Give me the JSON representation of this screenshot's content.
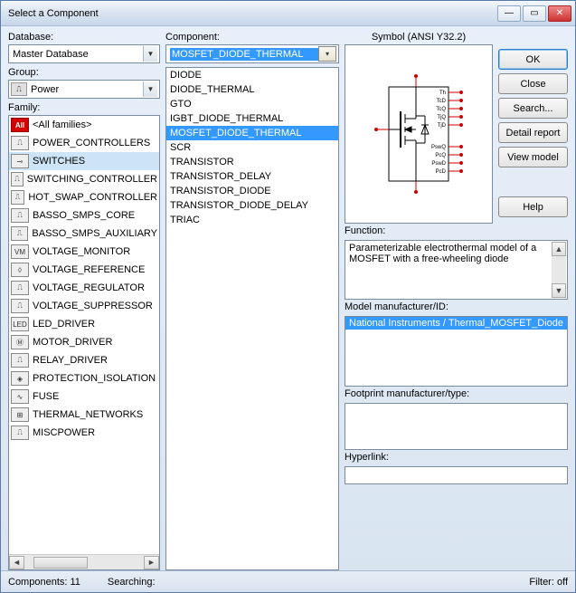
{
  "window": {
    "title": "Select a Component"
  },
  "labels": {
    "database": "Database:",
    "group": "Group:",
    "family": "Family:",
    "component": "Component:",
    "symbol": "Symbol (ANSI Y32.2)",
    "function": "Function:",
    "model": "Model manufacturer/ID:",
    "footprint": "Footprint manufacturer/type:",
    "hyperlink": "Hyperlink:"
  },
  "database": {
    "selected": "Master Database"
  },
  "group": {
    "selected": "Power"
  },
  "component_search": {
    "value": "MOSFET_DIODE_THERMAL"
  },
  "families": [
    {
      "icon": "All",
      "label": "<All families>",
      "icon_class": "all"
    },
    {
      "icon": "⎍",
      "label": "POWER_CONTROLLERS"
    },
    {
      "icon": "⊸",
      "label": "SWITCHES",
      "selected": true
    },
    {
      "icon": "⎍",
      "label": "SWITCHING_CONTROLLER"
    },
    {
      "icon": "⎍",
      "label": "HOT_SWAP_CONTROLLER"
    },
    {
      "icon": "⎍",
      "label": "BASSO_SMPS_CORE"
    },
    {
      "icon": "⎍",
      "label": "BASSO_SMPS_AUXILIARY"
    },
    {
      "icon": "VM",
      "label": "VOLTAGE_MONITOR"
    },
    {
      "icon": "◊",
      "label": "VOLTAGE_REFERENCE"
    },
    {
      "icon": "⎍",
      "label": "VOLTAGE_REGULATOR"
    },
    {
      "icon": "⎍",
      "label": "VOLTAGE_SUPPRESSOR"
    },
    {
      "icon": "LED",
      "label": "LED_DRIVER"
    },
    {
      "icon": "Ⓜ",
      "label": "MOTOR_DRIVER"
    },
    {
      "icon": "⎍",
      "label": "RELAY_DRIVER"
    },
    {
      "icon": "◈",
      "label": "PROTECTION_ISOLATION"
    },
    {
      "icon": "∿",
      "label": "FUSE"
    },
    {
      "icon": "⊞",
      "label": "THERMAL_NETWORKS"
    },
    {
      "icon": "⎍",
      "label": "MISCPOWER"
    }
  ],
  "components": [
    {
      "label": "DIODE"
    },
    {
      "label": "DIODE_THERMAL"
    },
    {
      "label": "GTO"
    },
    {
      "label": "IGBT_DIODE_THERMAL"
    },
    {
      "label": "MOSFET_DIODE_THERMAL",
      "selected": true
    },
    {
      "label": "SCR"
    },
    {
      "label": "TRANSISTOR"
    },
    {
      "label": "TRANSISTOR_DELAY"
    },
    {
      "label": "TRANSISTOR_DIODE"
    },
    {
      "label": "TRANSISTOR_DIODE_DELAY"
    },
    {
      "label": "TRIAC"
    }
  ],
  "symbol": {
    "pins_top": [
      "Th",
      "TcD",
      "TcQ",
      "TjQ",
      "TjD"
    ],
    "pins_bot": [
      "PswQ",
      "PcQ",
      "PswD",
      "PcD"
    ],
    "pin_color": "#cc0000",
    "line_color": "#000000"
  },
  "function_text": "Parameterizable electrothermal model of a MOSFET with a free-wheeling diode",
  "model_selected": "National Instruments / Thermal_MOSFET_Diode",
  "buttons": {
    "ok": "OK",
    "close": "Close",
    "search": "Search...",
    "detail": "Detail report",
    "view": "View model",
    "help": "Help"
  },
  "status": {
    "components": "Components: 11",
    "searching": "Searching:",
    "filter": "Filter: off"
  }
}
